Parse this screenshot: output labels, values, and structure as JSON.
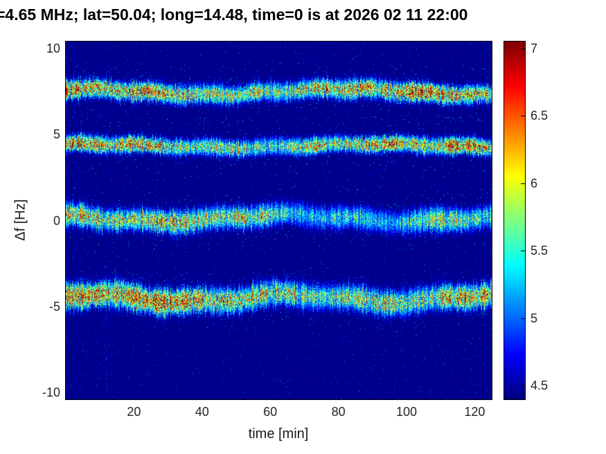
{
  "chart_data": {
    "type": "heatmap",
    "subtype": "doppler-spectrogram",
    "title": "=4.65 MHz;  lat=50.04; long=14.48, time=0 is at 2026 02 11 22:00",
    "xlabel": "time [min]",
    "ylabel": "Δf [Hz]",
    "x_ticks": [
      20,
      40,
      60,
      80,
      100,
      120
    ],
    "y_ticks": [
      10,
      5,
      0,
      -5,
      -10
    ],
    "x_range": [
      0,
      125
    ],
    "y_range": [
      -10.4,
      10.4
    ],
    "colormap": "jet",
    "color_range": [
      4.4,
      7.05
    ],
    "colorbar_ticks": [
      4.5,
      5,
      5.5,
      6,
      6.5,
      7
    ],
    "background_value": 4.42,
    "grid": false,
    "legend": "none",
    "seed": 42,
    "bands": [
      {
        "label": "spectral-band-plus-7.5Hz",
        "center": 7.5,
        "sigma": 0.34,
        "peak": 6.45,
        "trend": 0,
        "jitter": 0.1,
        "wiggle": [
          {
            "amp": 0.18,
            "period": 78,
            "phase": 1.35
          },
          {
            "amp": 0.07,
            "period": 16,
            "phase": 4.2
          }
        ],
        "peak_var": [
          {
            "amp": 0.4,
            "period": 96,
            "phase": 1.25
          },
          {
            "amp": 0.22,
            "period": 27,
            "phase": 2.1
          }
        ]
      },
      {
        "label": "spectral-band-plus-4.35Hz",
        "center": 4.35,
        "sigma": 0.3,
        "peak": 6.35,
        "trend": 0,
        "jitter": 0.09,
        "wiggle": [
          {
            "amp": 0.12,
            "period": 85,
            "phase": 1.1
          },
          {
            "amp": 0.06,
            "period": 19,
            "phase": 0.5
          }
        ],
        "peak_var": [
          {
            "amp": 0.38,
            "period": 105,
            "phase": 1.35
          },
          {
            "amp": 0.25,
            "period": 23,
            "phase": 1.2
          }
        ]
      },
      {
        "label": "spectral-band-0.15Hz",
        "center": 0.15,
        "sigma": 0.42,
        "peak": 6.3,
        "trend": -0.006,
        "jitter": 0.12,
        "wiggle": [
          {
            "amp": 0.2,
            "period": 72,
            "phase": 2.2
          },
          {
            "amp": 0.09,
            "period": 21,
            "phase": 1.0
          }
        ],
        "peak_var": [
          {
            "amp": 0.32,
            "period": 88,
            "phase": 5.35
          },
          {
            "amp": 0.22,
            "period": 26,
            "phase": 0.4
          }
        ]
      },
      {
        "label": "spectral-band-minus-4.5Hz",
        "center": -4.5,
        "sigma": 0.46,
        "peak": 6.6,
        "trend": -0.0025,
        "jitter": 0.12,
        "wiggle": [
          {
            "amp": 0.22,
            "period": 60,
            "phase": 0.9
          },
          {
            "amp": 0.1,
            "period": 23,
            "phase": 3.6
          }
        ],
        "peak_var": [
          {
            "amp": 0.35,
            "period": 130,
            "phase": 1.0
          },
          {
            "amp": 0.2,
            "period": 31,
            "phase": 2.6
          }
        ]
      }
    ],
    "artifacts": [
      {
        "t": 11.7,
        "hz_top": 0.6,
        "hz_bottom": -10.4,
        "strength": 0.55
      },
      {
        "t": 13.2,
        "hz_top": 10.4,
        "hz_bottom": -10.4,
        "strength": 0.2
      }
    ]
  }
}
